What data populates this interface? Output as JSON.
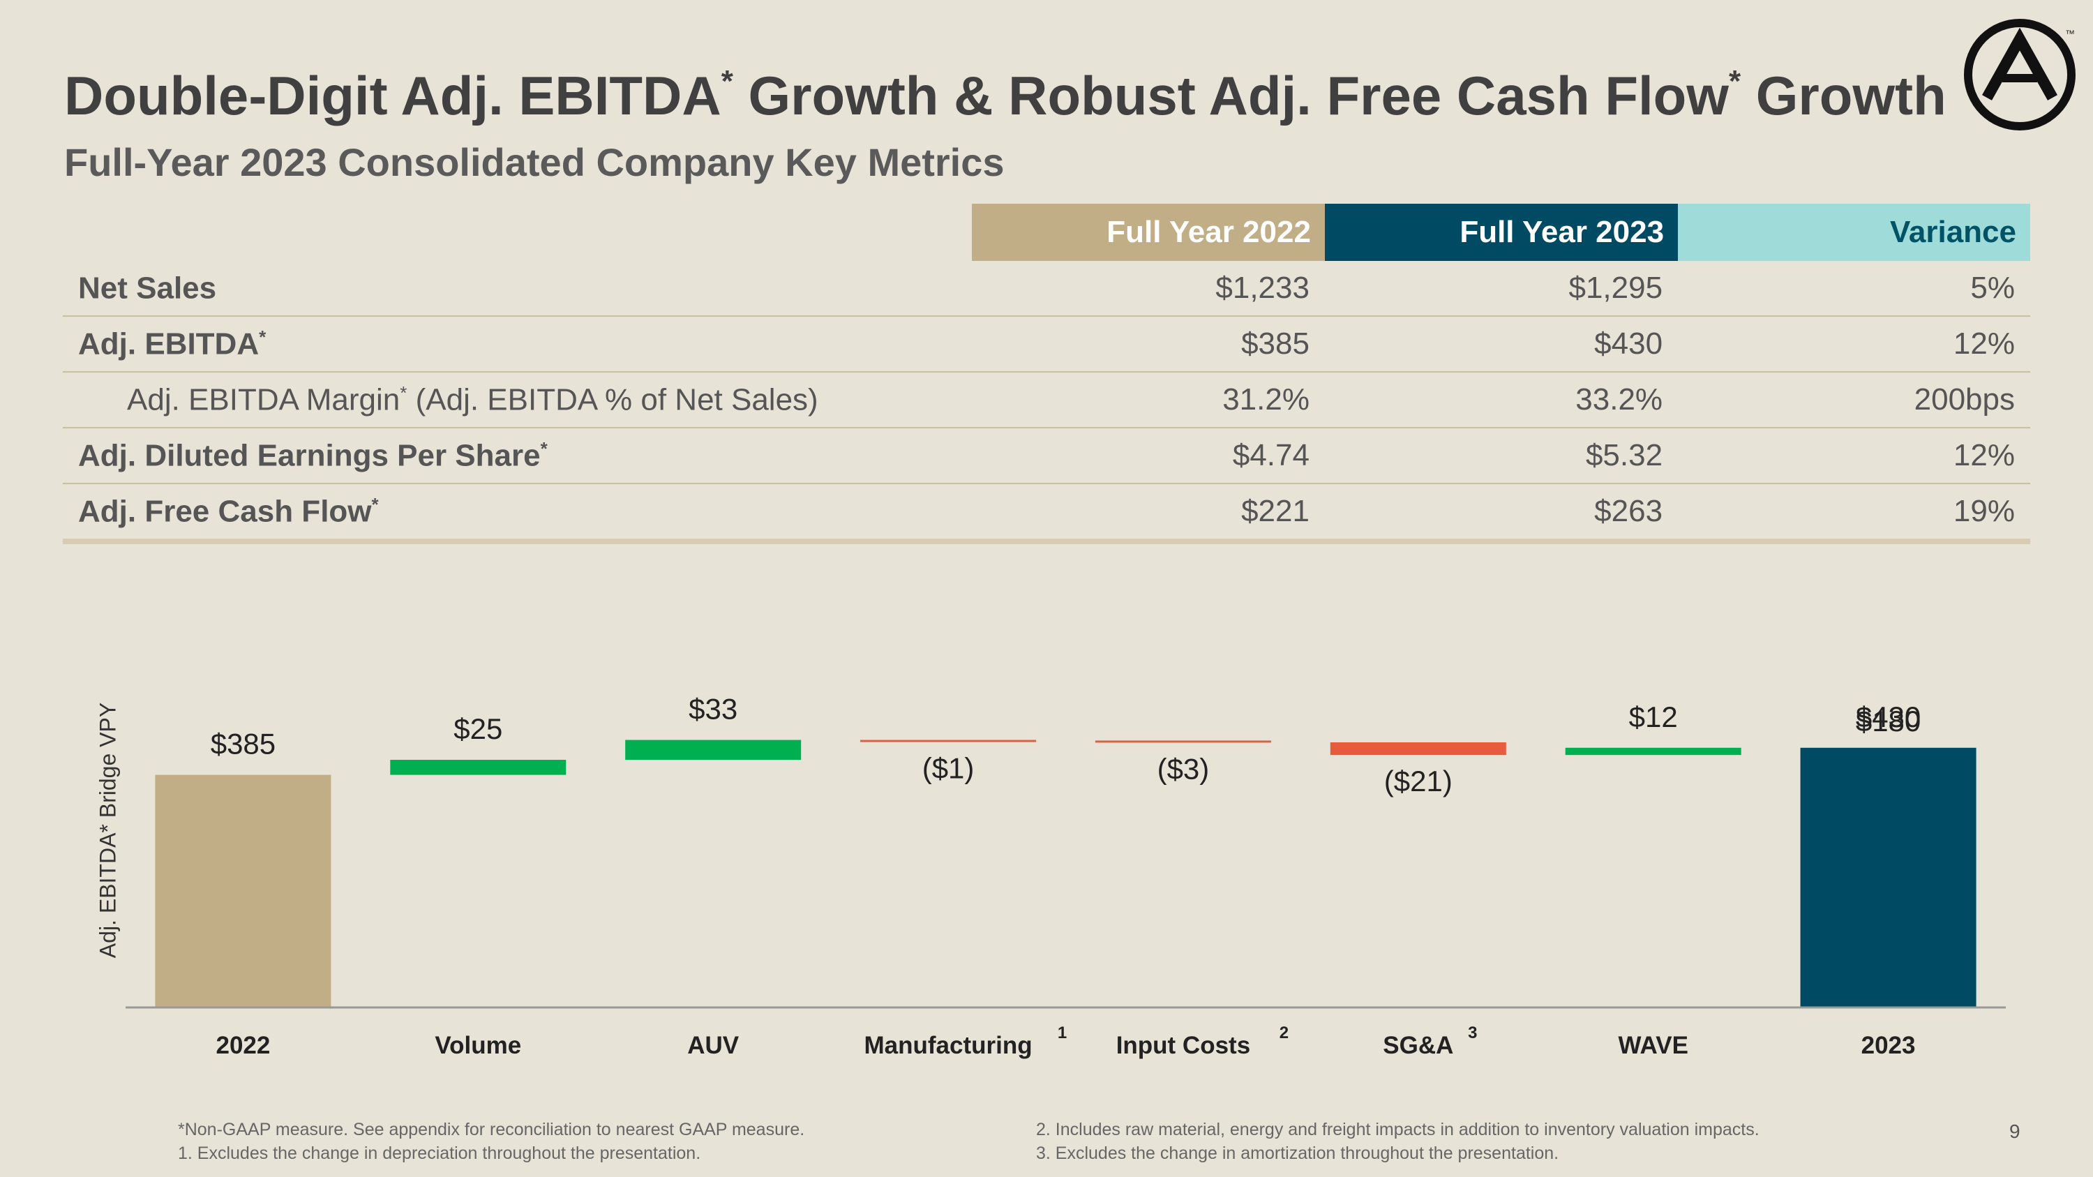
{
  "slide": {
    "title_part1": "Double-Digit Adj. EBITDA",
    "title_part2": " Growth & Robust Adj. Free Cash Flow",
    "title_part3": " Growth",
    "asterisk": "*",
    "subtitle": "Full-Year 2023 Consolidated Company Key Metrics",
    "page_number": "9"
  },
  "table": {
    "headers": [
      "Full Year 2022",
      "Full Year 2023",
      "Variance"
    ],
    "rows": [
      {
        "label": "Net Sales",
        "sup": "",
        "suffix": "",
        "fy2022": "$1,233",
        "fy2023": "$1,295",
        "variance": "5%"
      },
      {
        "label": "Adj. EBITDA",
        "sup": "*",
        "suffix": "",
        "fy2022": "$385",
        "fy2023": "$430",
        "variance": "12%"
      },
      {
        "label": "Adj. EBITDA Margin",
        "sup": "*",
        "suffix": " (Adj. EBITDA % of Net Sales)",
        "fy2022": "31.2%",
        "fy2023": "33.2%",
        "variance": "200bps"
      },
      {
        "label": "Adj. Diluted Earnings Per Share",
        "sup": "*",
        "suffix": "",
        "fy2022": "$4.74",
        "fy2023": "$5.32",
        "variance": "12%"
      },
      {
        "label": "Adj. Free Cash Flow",
        "sup": "*",
        "suffix": "",
        "fy2022": "$221",
        "fy2023": "$263",
        "variance": "19%"
      }
    ]
  },
  "chart_data": {
    "type": "waterfall",
    "ylabel": "Adj. EBITDA* Bridge VPY",
    "categories": [
      "2022",
      "Volume",
      "AUV",
      "Manufacturing",
      "Input Costs",
      "SG&A",
      "WAVE",
      "2023"
    ],
    "category_superscripts": [
      "",
      "",
      "",
      "1",
      "2",
      "3",
      "",
      ""
    ],
    "values": [
      385,
      25,
      33,
      -1,
      -3,
      -21,
      12,
      430
    ],
    "kinds": [
      "total",
      "delta",
      "delta",
      "delta",
      "delta",
      "delta",
      "delta",
      "total"
    ],
    "data_labels": [
      "$385",
      "$25",
      "$33",
      "($1)",
      "($3)",
      "($21)",
      "$12",
      "$430"
    ],
    "overlapping_label_2023": "$180",
    "colors": {
      "total_start": "#c1ae86",
      "total_end": "#004b63",
      "increase": "#00b050",
      "decrease": "#e55b3c",
      "axis": "#999999"
    }
  },
  "footnotes": {
    "left": [
      "*Non-GAAP measure. See appendix for reconciliation to nearest GAAP measure.",
      "1. Excludes the change in depreciation throughout the presentation."
    ],
    "right": [
      "2. Includes raw material, energy and freight impacts in addition to inventory valuation impacts.",
      "3. Excludes the change in amortization throughout the presentation."
    ]
  }
}
